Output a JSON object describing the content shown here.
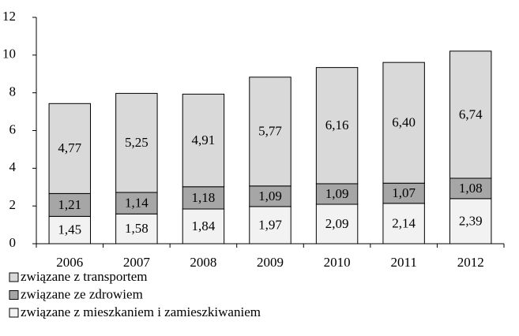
{
  "chart_data": {
    "type": "stacked_bar",
    "categories": [
      "2006",
      "2007",
      "2008",
      "2009",
      "2010",
      "2011",
      "2012"
    ],
    "series": [
      {
        "name": "związane z mieszkaniem i zamieszkiwaniem",
        "color": "#f2f2f2",
        "values": [
          1.45,
          1.58,
          1.84,
          1.97,
          2.09,
          2.14,
          2.39
        ],
        "value_labels": [
          "1,45",
          "1,58",
          "1,84",
          "1,97",
          "2,09",
          "2,14",
          "2,39"
        ]
      },
      {
        "name": "związane ze zdrowiem",
        "color": "#a6a6a6",
        "values": [
          1.21,
          1.14,
          1.18,
          1.09,
          1.09,
          1.07,
          1.08
        ],
        "value_labels": [
          "1,21",
          "1,14",
          "1,18",
          "1,09",
          "1,09",
          "1,07",
          "1,08"
        ]
      },
      {
        "name": "związane z transportem",
        "color": "#d9d9d9",
        "values": [
          4.77,
          5.25,
          4.91,
          5.77,
          6.16,
          6.4,
          6.74
        ],
        "value_labels": [
          "4,77",
          "5,25",
          "4,91",
          "5,77",
          "6,16",
          "6,40",
          "6,74"
        ]
      }
    ],
    "ylim": [
      0,
      12
    ],
    "yticks": [
      0,
      2,
      4,
      6,
      8,
      10,
      12
    ],
    "grid": false,
    "legend": "bottom-left"
  }
}
